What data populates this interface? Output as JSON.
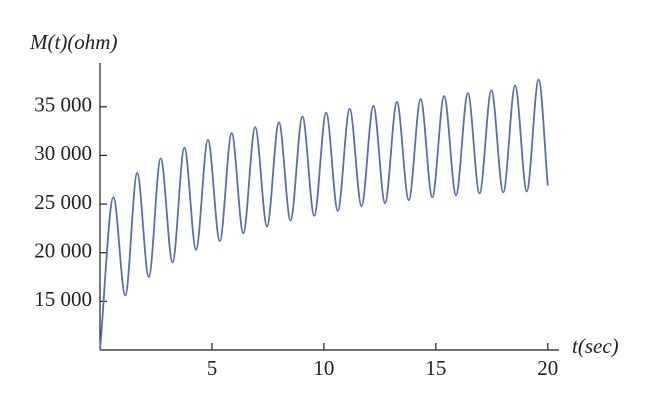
{
  "chart_data": {
    "type": "line",
    "y_label": "M(t)(ohm)",
    "x_label": "t(sec)",
    "x": [
      0,
      0.6,
      1.13,
      1.66,
      2.18,
      2.71,
      3.24,
      3.77,
      4.29,
      4.82,
      5.35,
      5.88,
      6.4,
      6.93,
      7.46,
      7.99,
      8.51,
      9.04,
      9.57,
      10.1,
      10.62,
      11.15,
      11.68,
      12.21,
      12.73,
      13.26,
      13.79,
      14.32,
      14.84,
      15.37,
      15.9,
      16.43,
      16.95,
      17.48,
      18.01,
      18.54,
      19.06,
      19.59,
      20
    ],
    "values": [
      10000,
      25700,
      15600,
      28200,
      17500,
      29700,
      19000,
      30800,
      20300,
      31600,
      21200,
      32300,
      22000,
      32900,
      22700,
      33400,
      23300,
      34000,
      23800,
      34400,
      24300,
      34800,
      24800,
      35100,
      25100,
      35500,
      25400,
      35800,
      25700,
      36100,
      25900,
      36400,
      26100,
      36700,
      26200,
      37200,
      26300,
      37800,
      26900
    ],
    "color": "#5a6db5",
    "xlim": [
      0,
      20.5
    ],
    "ylim": [
      10000,
      39500
    ],
    "xticks": [
      5,
      10,
      15,
      20
    ],
    "yticks": [
      {
        "value": 15000,
        "label": "15 000"
      },
      {
        "value": 20000,
        "label": "20 000"
      },
      {
        "value": 25000,
        "label": "25 000"
      },
      {
        "value": 30000,
        "label": "30 000"
      },
      {
        "value": 35000,
        "label": "35 000"
      }
    ],
    "grid": false
  }
}
